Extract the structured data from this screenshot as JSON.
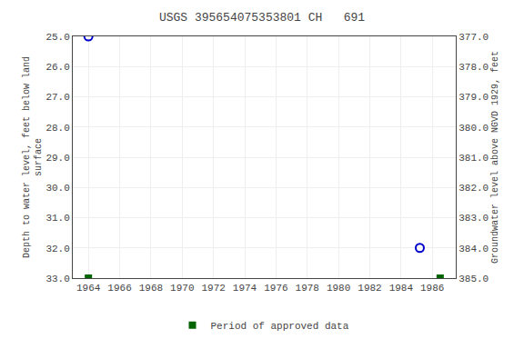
{
  "chart_data": {
    "type": "scatter",
    "title": "USGS 395654075353801 CH   691",
    "ylabel": "Depth to water level, feet below land\nsurface",
    "y2label": "Groundwater level above NGVD 1929, feet",
    "xlim": [
      1963.0,
      1987.5
    ],
    "xticks": [
      1964,
      1966,
      1968,
      1970,
      1972,
      1974,
      1976,
      1978,
      1980,
      1982,
      1984,
      1986
    ],
    "ylim": [
      33.0,
      25.0
    ],
    "yticks": [
      {
        "value": 25.0,
        "label": "25.0"
      },
      {
        "value": 26.0,
        "label": "26.0"
      },
      {
        "value": 27.0,
        "label": "27.0"
      },
      {
        "value": 28.0,
        "label": "28.0"
      },
      {
        "value": 29.0,
        "label": "29.0"
      },
      {
        "value": 30.0,
        "label": "30.0"
      },
      {
        "value": 31.0,
        "label": "31.0"
      },
      {
        "value": 32.0,
        "label": "32.0"
      },
      {
        "value": 33.0,
        "label": "33.0"
      }
    ],
    "y2lim": [
      385.0,
      377.0
    ],
    "y2ticks": [
      {
        "value": 385.0,
        "label": "385.0"
      },
      {
        "value": 384.0,
        "label": "384.0"
      },
      {
        "value": 383.0,
        "label": "383.0"
      },
      {
        "value": 382.0,
        "label": "382.0"
      },
      {
        "value": 381.0,
        "label": "381.0"
      },
      {
        "value": 380.0,
        "label": "380.0"
      },
      {
        "value": 379.0,
        "label": "379.0"
      },
      {
        "value": 378.0,
        "label": "378.0"
      },
      {
        "value": 377.0,
        "label": "377.0"
      }
    ],
    "series": [
      {
        "x": [
          1964,
          1985.2
        ],
        "values": [
          25.0,
          32.0
        ],
        "color": "#0000cc",
        "marker": "open_circle"
      },
      {
        "name": "Period of approved data",
        "x": [
          1964,
          1986.5
        ],
        "values": [
          33.0,
          33.0
        ],
        "color": "#006400",
        "marker": "square"
      }
    ],
    "grid": true,
    "legend": "bottom"
  }
}
